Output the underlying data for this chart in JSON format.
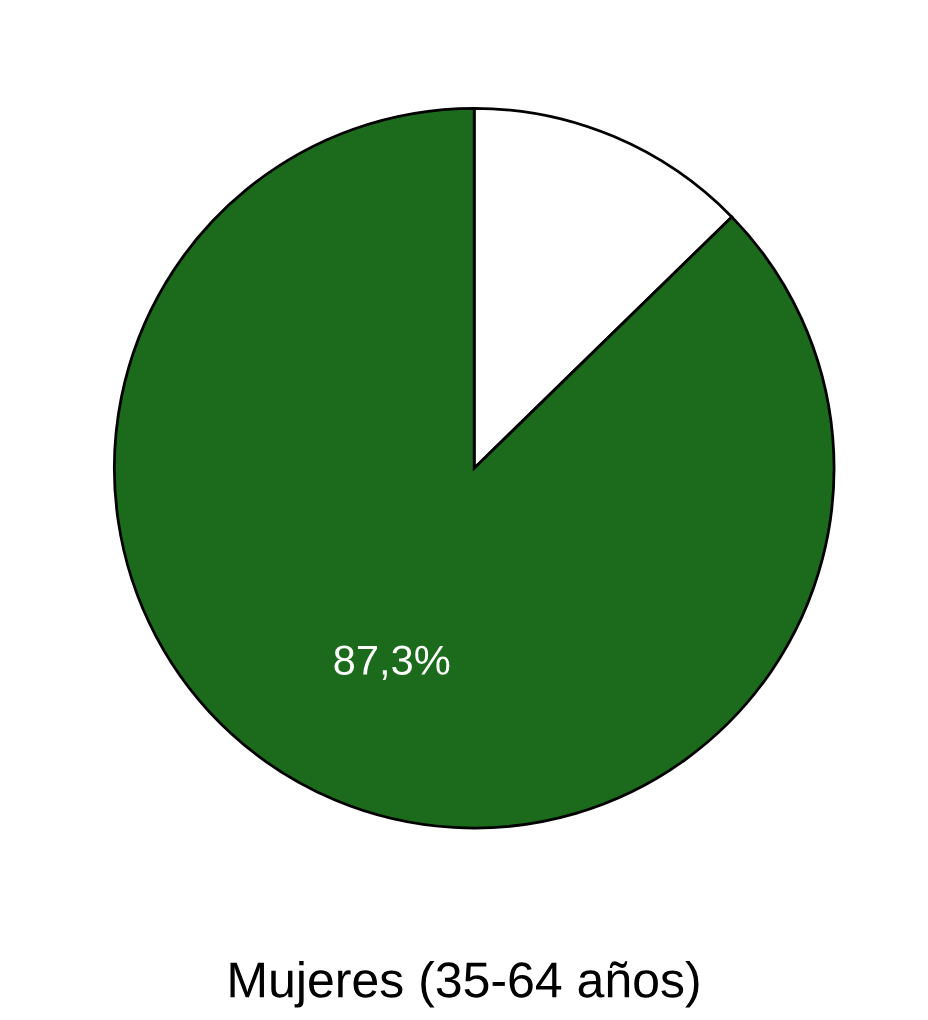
{
  "chart_data": {
    "type": "pie",
    "title": "Mujeres (35-64 años)",
    "categories": [
      null,
      null
    ],
    "values": [
      12.7,
      87.3
    ],
    "colors": [
      "#ffffff",
      "#1c6b1c"
    ],
    "value_labels": [
      null,
      "87,3%"
    ]
  }
}
